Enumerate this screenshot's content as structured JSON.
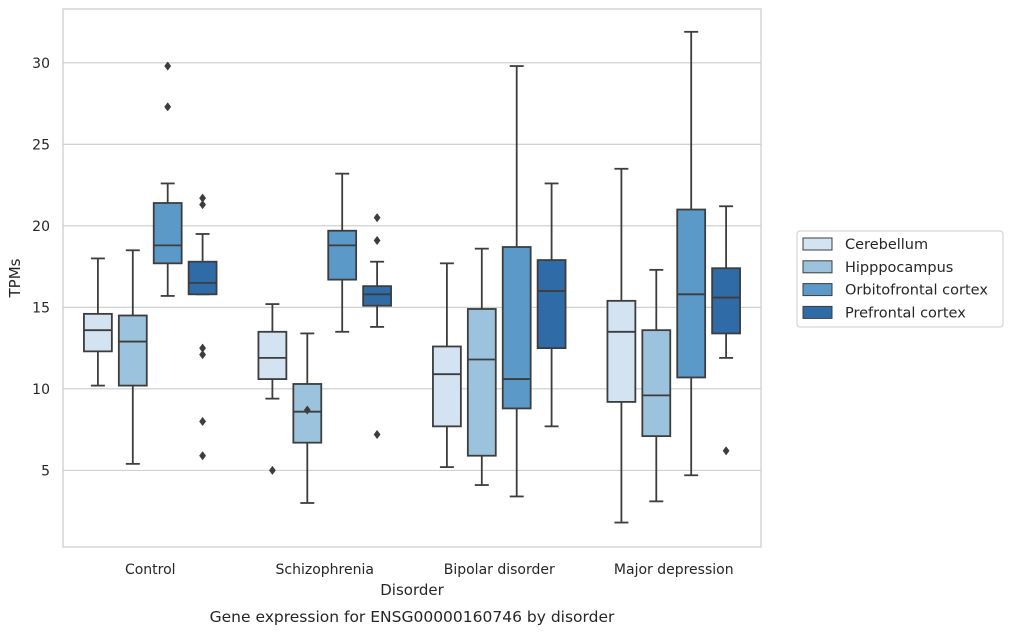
{
  "chart_data": {
    "type": "box",
    "caption": "Gene expression for ENSG00000160746 by disorder",
    "xlabel": "Disorder",
    "ylabel": "TPMs",
    "ylim": [
      0.3,
      33.3
    ],
    "yticks": [
      5,
      10,
      15,
      20,
      25,
      30
    ],
    "grid": "horizontal",
    "legend_placement": "right",
    "categories": [
      "Control",
      "Schizophrenia",
      "Bipolar disorder",
      "Major depression"
    ],
    "series": [
      {
        "name": "Cerebellum",
        "color": "#d4e3f2",
        "boxes": [
          {
            "whislo": 10.2,
            "q1": 12.3,
            "med": 13.6,
            "q3": 14.6,
            "whishi": 18.0,
            "fliers": []
          },
          {
            "whislo": 9.4,
            "q1": 10.6,
            "med": 11.9,
            "q3": 13.5,
            "whishi": 15.2,
            "fliers": [
              5.0
            ]
          },
          {
            "whislo": 5.2,
            "q1": 7.7,
            "med": 10.9,
            "q3": 12.6,
            "whishi": 17.7,
            "fliers": []
          },
          {
            "whislo": 1.8,
            "q1": 9.2,
            "med": 13.5,
            "q3": 15.4,
            "whishi": 23.5,
            "fliers": []
          }
        ]
      },
      {
        "name": "Hipppocampus",
        "color": "#9cc3dd",
        "boxes": [
          {
            "whislo": 5.4,
            "q1": 10.2,
            "med": 12.9,
            "q3": 14.5,
            "whishi": 18.5,
            "fliers": []
          },
          {
            "whislo": 3.0,
            "q1": 6.7,
            "med": 8.6,
            "q3": 10.3,
            "whishi": 13.4,
            "fliers": [
              8.7
            ]
          },
          {
            "whislo": 4.1,
            "q1": 5.9,
            "med": 11.8,
            "q3": 14.9,
            "whishi": 18.6,
            "fliers": []
          },
          {
            "whislo": 3.1,
            "q1": 7.1,
            "med": 9.6,
            "q3": 13.6,
            "whishi": 17.3,
            "fliers": []
          }
        ]
      },
      {
        "name": "Orbitofrontal cortex",
        "color": "#5b99c8",
        "boxes": [
          {
            "whislo": 15.7,
            "q1": 17.7,
            "med": 18.8,
            "q3": 21.4,
            "whishi": 22.6,
            "fliers": [
              27.3,
              29.8
            ]
          },
          {
            "whislo": 13.5,
            "q1": 16.7,
            "med": 18.8,
            "q3": 19.7,
            "whishi": 23.2,
            "fliers": []
          },
          {
            "whislo": 3.4,
            "q1": 8.8,
            "med": 10.6,
            "q3": 18.7,
            "whishi": 29.8,
            "fliers": []
          },
          {
            "whislo": 4.7,
            "q1": 10.7,
            "med": 15.8,
            "q3": 21.0,
            "whishi": 31.9,
            "fliers": []
          }
        ]
      },
      {
        "name": "Prefrontal cortex",
        "color": "#2f6ba7",
        "boxes": [
          {
            "whislo": 15.8,
            "q1": 15.8,
            "med": 16.5,
            "q3": 17.8,
            "whishi": 19.5,
            "fliers": [
              21.7,
              21.3,
              12.5,
              12.1,
              8.0,
              5.9
            ]
          },
          {
            "whislo": 13.8,
            "q1": 15.1,
            "med": 15.8,
            "q3": 16.3,
            "whishi": 17.8,
            "fliers": [
              20.5,
              19.1,
              7.2
            ]
          },
          {
            "whislo": 7.7,
            "q1": 12.5,
            "med": 16.0,
            "q3": 17.9,
            "whishi": 22.6,
            "fliers": []
          },
          {
            "whislo": 11.9,
            "q1": 13.4,
            "med": 15.6,
            "q3": 17.4,
            "whishi": 21.2,
            "fliers": [
              6.2
            ]
          }
        ]
      }
    ]
  }
}
